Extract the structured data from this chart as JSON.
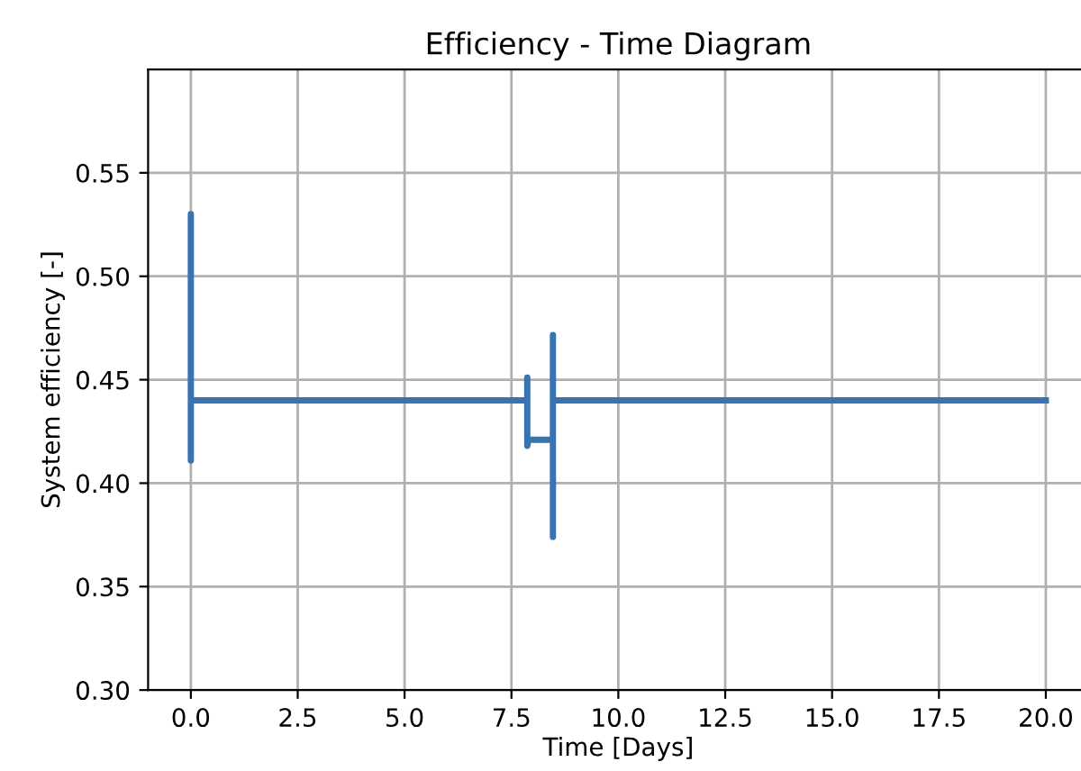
{
  "chart_data": {
    "type": "line",
    "title": "Efficiency - Time Diagram",
    "xlabel": "Time [Days]",
    "ylabel": "System efficiency [-]",
    "series": [
      {
        "color": "#3a74b0",
        "x": [
          0,
          0,
          0,
          0,
          7.87,
          7.87,
          7.87,
          7.9,
          8.47,
          8.47,
          8.47,
          8.47,
          8.5,
          20
        ],
        "values": [
          0.44,
          0.53,
          0.411,
          0.44,
          0.44,
          0.451,
          0.418,
          0.421,
          0.421,
          0.4716,
          0.374,
          0.44,
          0.44,
          0.44
        ]
      }
    ],
    "xlim": [
      -1,
      21
    ],
    "ylim": [
      0.3,
      0.6
    ],
    "xticks": [
      {
        "value": 0,
        "label": "0.0"
      },
      {
        "value": 2.5,
        "label": "2.5"
      },
      {
        "value": 5,
        "label": "5.0"
      },
      {
        "value": 7.5,
        "label": "7.5"
      },
      {
        "value": 10,
        "label": "10.0"
      },
      {
        "value": 12.5,
        "label": "12.5"
      },
      {
        "value": 15,
        "label": "15.0"
      },
      {
        "value": 17.5,
        "label": "17.5"
      },
      {
        "value": 20,
        "label": "20.0"
      }
    ],
    "yticks": [
      {
        "value": 0.3,
        "label": "0.30"
      },
      {
        "value": 0.35,
        "label": "0.35"
      },
      {
        "value": 0.4,
        "label": "0.40"
      },
      {
        "value": 0.45,
        "label": "0.45"
      },
      {
        "value": 0.5,
        "label": "0.50"
      },
      {
        "value": 0.55,
        "label": "0.55"
      }
    ],
    "grid": true,
    "line_style": "solid"
  }
}
